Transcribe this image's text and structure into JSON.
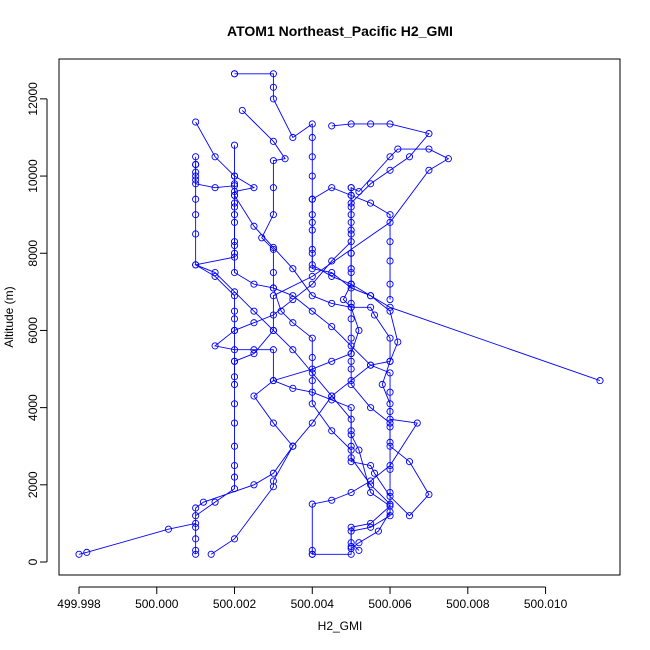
{
  "chart_data": {
    "type": "line",
    "title": "ATOM1 Northeast_Pacific H2_GMI",
    "xlabel": "H2_GMI",
    "ylabel": "Altitude (m)",
    "xlim": [
      499.998,
      500.0114
    ],
    "ylim": [
      0,
      12800
    ],
    "x_ticks": [
      499.998,
      500.0,
      500.002,
      500.004,
      500.006,
      500.008,
      500.01
    ],
    "x_tick_labels": [
      "499.998",
      "500.000",
      "500.002",
      "500.004",
      "500.006",
      "500.008",
      "500.010"
    ],
    "y_ticks": [
      0,
      2000,
      4000,
      6000,
      8000,
      10000,
      12000
    ],
    "y_tick_labels": [
      "0",
      "2000",
      "4000",
      "6000",
      "8000",
      "10000",
      "12000"
    ],
    "line_color": "#0000ff",
    "marker": "open-circle",
    "grid": false,
    "legend": "none",
    "series": [
      {
        "points": [
          [
            499.998,
            200
          ],
          [
            499.9982,
            250
          ],
          [
            500.0003,
            850
          ],
          [
            500.001,
            1000
          ],
          [
            500.001,
            1400
          ],
          [
            500.0012,
            1550
          ],
          [
            500.0025,
            2000
          ],
          [
            500.003,
            2300
          ],
          [
            500.0035,
            3000
          ],
          [
            500.003,
            3600
          ],
          [
            500.0025,
            4300
          ],
          [
            500.003,
            4700
          ],
          [
            500.004,
            5000
          ],
          [
            500.0045,
            5200
          ],
          [
            500.005,
            5400
          ],
          [
            500.0052,
            6000
          ],
          [
            500.005,
            6600
          ],
          [
            500.0048,
            6800
          ],
          [
            500.005,
            7200
          ],
          [
            500.005,
            7600
          ],
          [
            500.005,
            8000
          ],
          [
            500.005,
            8600
          ],
          [
            500.005,
            9200
          ],
          [
            500.005,
            9700
          ],
          [
            500.0052,
            9600
          ],
          [
            500.006,
            10500
          ],
          [
            500.0062,
            10700
          ],
          [
            500.007,
            10700
          ],
          [
            500.0075,
            10450
          ],
          [
            500.007,
            10150
          ],
          [
            500.006,
            8800
          ],
          [
            500.004,
            7400
          ],
          [
            500.003,
            6900
          ],
          [
            500.003,
            6000
          ],
          [
            500.0025,
            5400
          ],
          [
            500.002,
            5200
          ],
          [
            500.002,
            4800
          ],
          [
            500.002,
            4100
          ],
          [
            500.002,
            3600
          ],
          [
            500.002,
            3000
          ],
          [
            500.002,
            2500
          ],
          [
            500.002,
            2200
          ],
          [
            500.002,
            1900
          ],
          [
            500.0015,
            1550
          ],
          [
            500.001,
            1200
          ],
          [
            500.001,
            900
          ],
          [
            500.001,
            600
          ],
          [
            500.001,
            300
          ],
          [
            500.001,
            200
          ]
        ]
      },
      {
        "points": [
          [
            500.0014,
            200
          ],
          [
            500.002,
            600
          ],
          [
            500.003,
            1950
          ],
          [
            500.003,
            2100
          ],
          [
            500.0035,
            3000
          ],
          [
            500.004,
            3600
          ],
          [
            500.0045,
            4300
          ],
          [
            500.005,
            4700
          ],
          [
            500.0055,
            5100
          ],
          [
            500.006,
            5200
          ],
          [
            500.0062,
            5700
          ],
          [
            500.006,
            6500
          ],
          [
            500.0055,
            6900
          ],
          [
            500.005,
            7100
          ],
          [
            500.0045,
            7500
          ],
          [
            500.004,
            7600
          ],
          [
            500.004,
            8000
          ],
          [
            500.004,
            8600
          ],
          [
            500.004,
            9000
          ],
          [
            500.004,
            9400
          ],
          [
            500.004,
            10000
          ],
          [
            500.004,
            10500
          ],
          [
            500.004,
            11000
          ],
          [
            500.004,
            11350
          ],
          [
            500.0035,
            11000
          ],
          [
            500.003,
            12000
          ],
          [
            500.003,
            12300
          ],
          [
            500.003,
            12650
          ],
          [
            500.002,
            12650
          ],
          [
            500.002,
            12650
          ]
        ]
      },
      {
        "points": [
          [
            500.0022,
            11700
          ],
          [
            500.003,
            10900
          ],
          [
            500.0033,
            10450
          ],
          [
            500.003,
            10400
          ],
          [
            500.003,
            9700
          ],
          [
            500.003,
            9000
          ],
          [
            500.0027,
            8400
          ],
          [
            500.003,
            8100
          ],
          [
            500.003,
            7500
          ],
          [
            500.003,
            7100
          ],
          [
            500.0032,
            6500
          ],
          [
            500.0035,
            6200
          ],
          [
            500.004,
            5800
          ],
          [
            500.004,
            5300
          ],
          [
            500.004,
            4700
          ],
          [
            500.004,
            4100
          ],
          [
            500.0045,
            3400
          ],
          [
            500.005,
            2900
          ],
          [
            500.005,
            2700
          ],
          [
            500.0055,
            2000
          ],
          [
            500.006,
            1500
          ],
          [
            500.006,
            1200
          ],
          [
            500.0055,
            900
          ],
          [
            500.005,
            800
          ],
          [
            500.005,
            400
          ],
          [
            500.005,
            200
          ],
          [
            500.004,
            200
          ],
          [
            500.004,
            300
          ]
        ]
      },
      {
        "points": [
          [
            500.001,
            11400
          ],
          [
            500.0015,
            10500
          ],
          [
            500.002,
            10000
          ],
          [
            500.0025,
            9700
          ],
          [
            500.002,
            9600
          ],
          [
            500.002,
            9500
          ],
          [
            500.0025,
            8700
          ],
          [
            500.003,
            8150
          ],
          [
            500.0035,
            7600
          ],
          [
            500.004,
            6900
          ],
          [
            500.0045,
            6700
          ],
          [
            500.005,
            6600
          ],
          [
            500.0055,
            6600
          ],
          [
            500.0056,
            6400
          ],
          [
            500.006,
            5800
          ],
          [
            500.006,
            5200
          ],
          [
            500.0058,
            4600
          ],
          [
            500.006,
            4100
          ],
          [
            500.006,
            3700
          ],
          [
            500.0067,
            3600
          ],
          [
            500.006,
            2500
          ],
          [
            500.0055,
            2100
          ],
          [
            500.005,
            1800
          ],
          [
            500.0045,
            1600
          ],
          [
            500.004,
            1500
          ],
          [
            500.004,
            200
          ]
        ]
      },
      {
        "points": [
          [
            500.001,
            10500
          ],
          [
            500.001,
            10300
          ],
          [
            500.001,
            10000
          ],
          [
            500.001,
            9800
          ],
          [
            500.0015,
            9700
          ],
          [
            500.002,
            9750
          ],
          [
            500.002,
            9300
          ],
          [
            500.002,
            9000
          ],
          [
            500.002,
            8300
          ],
          [
            500.002,
            8200
          ],
          [
            500.002,
            7900
          ],
          [
            500.001,
            7700
          ],
          [
            500.0015,
            7400
          ],
          [
            500.002,
            6900
          ],
          [
            500.002,
            6500
          ],
          [
            500.002,
            6300
          ],
          [
            500.002,
            6000
          ],
          [
            500.0015,
            5600
          ],
          [
            500.002,
            5500
          ],
          [
            500.0025,
            5500
          ],
          [
            500.003,
            5500
          ],
          [
            500.003,
            4700
          ],
          [
            500.0035,
            4500
          ],
          [
            500.004,
            4400
          ],
          [
            500.0045,
            4200
          ],
          [
            500.005,
            4000
          ],
          [
            500.005,
            3400
          ],
          [
            500.005,
            3000
          ],
          [
            500.005,
            2600
          ],
          [
            500.0055,
            2500
          ],
          [
            500.0056,
            2300
          ],
          [
            500.006,
            1700
          ],
          [
            500.0065,
            1200
          ],
          [
            500.007,
            1750
          ],
          [
            500.0065,
            2600
          ],
          [
            500.006,
            3000
          ],
          [
            500.006,
            3600
          ],
          [
            500.0055,
            4000
          ],
          [
            500.005,
            4600
          ],
          [
            500.005,
            5000
          ],
          [
            500.005,
            5200
          ],
          [
            500.005,
            5400
          ],
          [
            500.005,
            5800
          ],
          [
            500.005,
            6300
          ],
          [
            500.005,
            6700
          ],
          [
            500.005,
            7200
          ],
          [
            500.005,
            7500
          ],
          [
            500.005,
            8000
          ],
          [
            500.005,
            8500
          ],
          [
            500.005,
            9000
          ],
          [
            500.005,
            9500
          ],
          [
            500.005,
            9700
          ]
        ]
      },
      {
        "points": [
          [
            500.0114,
            4700
          ],
          [
            500.006,
            6600
          ],
          [
            500.0055,
            6900
          ],
          [
            500.005,
            7200
          ],
          [
            500.0045,
            7400
          ],
          [
            500.004,
            7700
          ],
          [
            500.004,
            8100
          ],
          [
            500.004,
            8800
          ],
          [
            500.004,
            9400
          ],
          [
            500.0045,
            9700
          ],
          [
            500.005,
            9500
          ],
          [
            500.0055,
            9300
          ],
          [
            500.006,
            9000
          ],
          [
            500.006,
            8300
          ],
          [
            500.006,
            7800
          ],
          [
            500.006,
            7200
          ],
          [
            500.006,
            6800
          ]
        ]
      },
      {
        "points": [
          [
            500.0045,
            11300
          ],
          [
            500.005,
            11350
          ],
          [
            500.0055,
            11350
          ],
          [
            500.006,
            11350
          ],
          [
            500.007,
            11100
          ],
          [
            500.0065,
            10500
          ],
          [
            500.006,
            10150
          ],
          [
            500.0055,
            9800
          ],
          [
            500.005,
            9300
          ],
          [
            500.005,
            8800
          ],
          [
            500.005,
            8300
          ],
          [
            500.0045,
            7800
          ],
          [
            500.004,
            7200
          ],
          [
            500.0035,
            6800
          ],
          [
            500.003,
            6400
          ],
          [
            500.0025,
            6200
          ],
          [
            500.002,
            6000
          ],
          [
            500.002,
            5200
          ],
          [
            500.002,
            4600
          ]
        ]
      },
      {
        "points": [
          [
            500.001,
            10300
          ],
          [
            500.001,
            10100
          ],
          [
            500.001,
            9900
          ],
          [
            500.001,
            9400
          ],
          [
            500.001,
            9000
          ],
          [
            500.001,
            8500
          ],
          [
            500.001,
            7700
          ],
          [
            500.0015,
            7500
          ],
          [
            500.002,
            7000
          ],
          [
            500.0025,
            6500
          ],
          [
            500.003,
            6000
          ],
          [
            500.0035,
            5500
          ],
          [
            500.004,
            4900
          ],
          [
            500.0045,
            4300
          ],
          [
            500.005,
            3700
          ],
          [
            500.005,
            3300
          ],
          [
            500.0052,
            2900
          ],
          [
            500.0055,
            1800
          ],
          [
            500.006,
            1450
          ],
          [
            500.0055,
            1000
          ],
          [
            500.005,
            900
          ],
          [
            500.005,
            500
          ],
          [
            500.0052,
            300
          ]
        ]
      },
      {
        "points": [
          [
            500.002,
            10800
          ],
          [
            500.002,
            10000
          ],
          [
            500.002,
            9800
          ],
          [
            500.002,
            9500
          ],
          [
            500.002,
            9200
          ],
          [
            500.002,
            8800
          ],
          [
            500.002,
            8000
          ],
          [
            500.002,
            7500
          ],
          [
            500.0025,
            7200
          ],
          [
            500.003,
            7100
          ],
          [
            500.0035,
            6900
          ],
          [
            500.004,
            6500
          ],
          [
            500.0045,
            6100
          ],
          [
            500.005,
            5600
          ],
          [
            500.0055,
            5100
          ],
          [
            500.006,
            4900
          ],
          [
            500.006,
            4400
          ],
          [
            500.006,
            3900
          ],
          [
            500.006,
            3500
          ],
          [
            500.006,
            3100
          ],
          [
            500.006,
            2400
          ],
          [
            500.006,
            1800
          ],
          [
            500.006,
            1300
          ],
          [
            500.0057,
            800
          ],
          [
            500.0052,
            500
          ],
          [
            500.005,
            350
          ]
        ]
      }
    ]
  }
}
